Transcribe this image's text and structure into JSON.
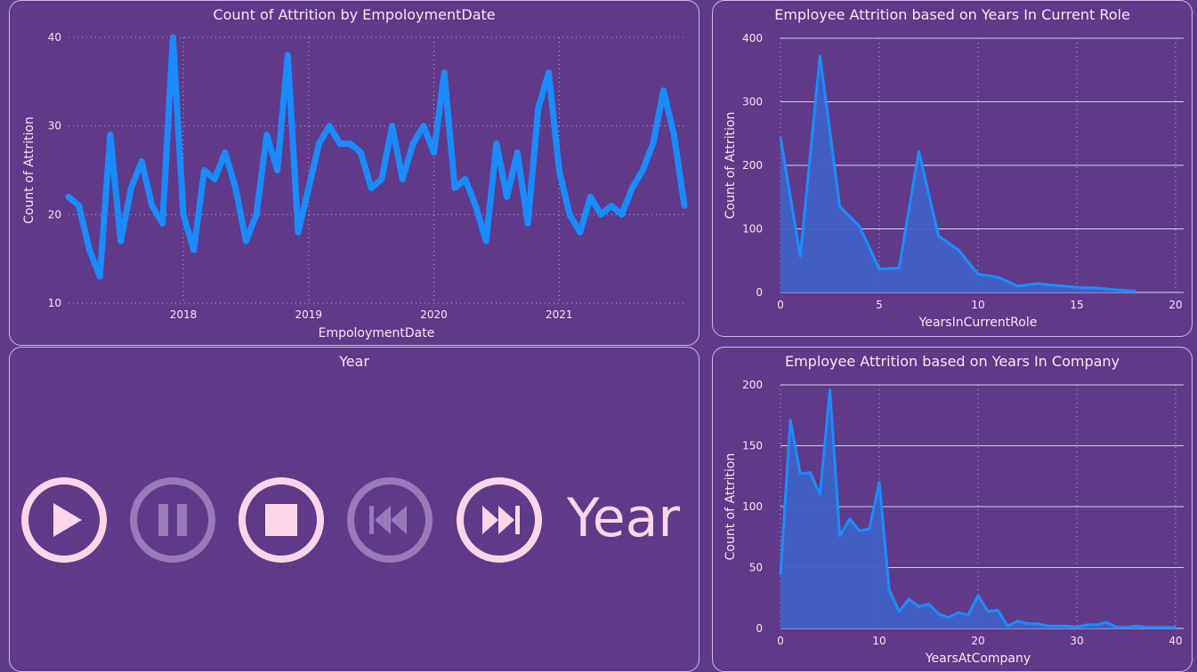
{
  "panels": {
    "timeline": {
      "title": "Count of Attrition by EmpoloymentDate"
    },
    "years_role": {
      "title": "Employee Attrition based on Years In Current Role"
    },
    "player": {
      "title": "Year"
    },
    "years_company": {
      "title": "Employee Attrition based on Years In Company"
    }
  },
  "player": {
    "label": "Year",
    "buttons": [
      {
        "name": "play-button",
        "icon": "play-icon",
        "enabled": true
      },
      {
        "name": "pause-button",
        "icon": "pause-icon",
        "enabled": false
      },
      {
        "name": "stop-button",
        "icon": "stop-icon",
        "enabled": true
      },
      {
        "name": "previous-button",
        "icon": "skip-back-icon",
        "enabled": false
      },
      {
        "name": "next-button",
        "icon": "skip-forward-icon",
        "enabled": true
      }
    ]
  },
  "colors": {
    "background": "#5e3a89",
    "line": "#1a8cff",
    "area": "#3f5fc4",
    "text": "#ffe3f0",
    "control_active": "#ffd6e8",
    "control_inactive": "#9a7ab8",
    "grid": "#d9cce9"
  },
  "chart_data": [
    {
      "id": "timeline",
      "type": "line",
      "title": "Count of Attrition by EmpoloymentDate",
      "xlabel": "EmpoloymentDate",
      "ylabel": "Count of Attrition",
      "x_start": "2017-02",
      "x_ticks": [
        "2018",
        "2019",
        "2020",
        "2021"
      ],
      "y_ticks": [
        10,
        20,
        30,
        40
      ],
      "ylim": [
        10,
        40
      ],
      "grid": "dotted",
      "values": [
        22,
        21,
        16,
        13,
        29,
        17,
        23,
        26,
        21,
        19,
        40,
        20,
        16,
        25,
        24,
        27,
        23,
        17,
        20,
        29,
        25,
        38,
        18,
        23,
        28,
        30,
        28,
        28,
        27,
        23,
        24,
        30,
        24,
        28,
        30,
        27,
        36,
        23,
        24,
        21,
        17,
        28,
        22,
        27,
        19,
        32,
        36,
        25,
        20,
        18,
        22,
        20,
        21,
        20,
        23,
        25,
        28,
        34,
        29,
        21
      ]
    },
    {
      "id": "years_role",
      "type": "area",
      "title": "Employee Attrition based on Years In Current Role",
      "xlabel": "YearsInCurrentRole",
      "ylabel": "Count of Attrition",
      "x_ticks": [
        0,
        5,
        10,
        15,
        20
      ],
      "y_ticks": [
        0,
        100,
        200,
        300,
        400
      ],
      "xlim": [
        0,
        20
      ],
      "ylim": [
        0,
        400
      ],
      "x": [
        0,
        1,
        2,
        3,
        4,
        5,
        6,
        7,
        8,
        9,
        10,
        11,
        12,
        13,
        14,
        15,
        16,
        17,
        18
      ],
      "values": [
        244,
        57,
        372,
        135,
        104,
        37,
        38,
        222,
        89,
        67,
        29,
        24,
        10,
        14,
        11,
        8,
        7,
        4,
        2
      ]
    },
    {
      "id": "years_company",
      "type": "area",
      "title": "Employee Attrition based on Years In Company",
      "xlabel": "YearsAtCompany",
      "ylabel": "Count of Attrition",
      "x_ticks": [
        0,
        10,
        20,
        30,
        40
      ],
      "y_ticks": [
        0,
        50,
        100,
        150,
        200
      ],
      "xlim": [
        0,
        40
      ],
      "ylim": [
        0,
        200
      ],
      "x": [
        0,
        1,
        2,
        3,
        4,
        5,
        6,
        7,
        8,
        9,
        10,
        11,
        12,
        13,
        14,
        15,
        16,
        17,
        18,
        19,
        20,
        21,
        22,
        23,
        24,
        25,
        26,
        27,
        28,
        29,
        30,
        31,
        32,
        33,
        34,
        35,
        36,
        37,
        38,
        39,
        40
      ],
      "values": [
        44,
        171,
        127,
        128,
        110,
        196,
        76,
        90,
        80,
        82,
        120,
        32,
        14,
        24,
        18,
        20,
        12,
        9,
        13,
        11,
        27,
        14,
        15,
        2,
        6,
        4,
        4,
        2,
        2,
        2,
        1,
        3,
        3,
        5,
        1,
        1,
        2,
        1,
        1,
        1,
        1
      ]
    }
  ]
}
